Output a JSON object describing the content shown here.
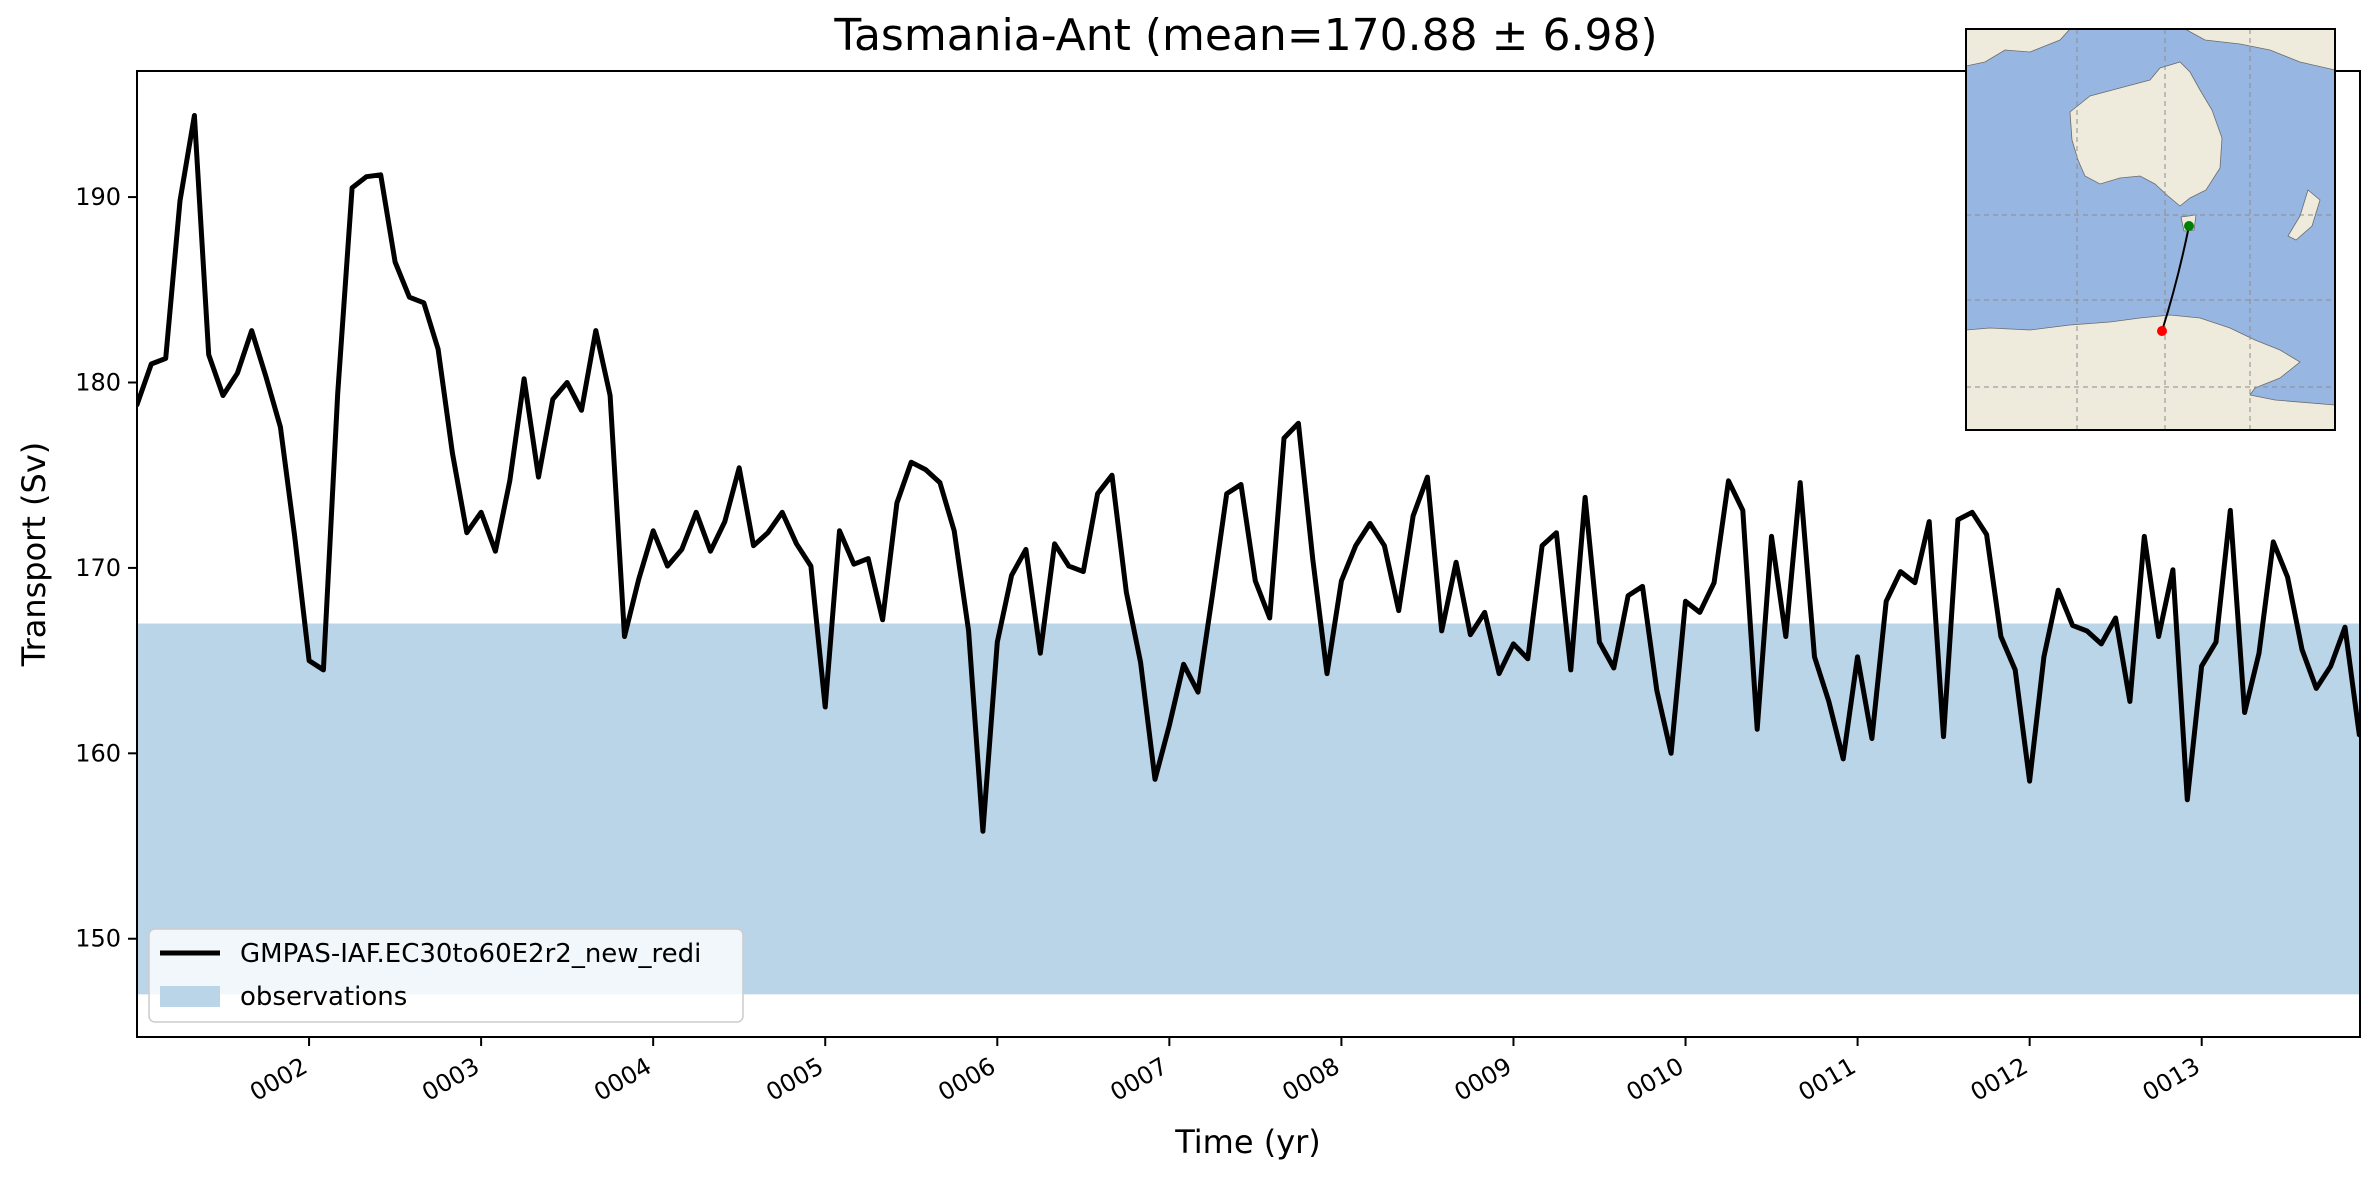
{
  "chart_data": {
    "type": "line",
    "title": "Tasmania-Ant (mean=170.88 ± 6.98)",
    "xlabel": "Time (yr)",
    "ylabel": "Transport (Sv)",
    "xlim": [
      1.0,
      13.92
    ],
    "ylim": [
      144.7,
      196.8
    ],
    "x_ticks": [
      {
        "value": 2,
        "label": "0002"
      },
      {
        "value": 3,
        "label": "0003"
      },
      {
        "value": 4,
        "label": "0004"
      },
      {
        "value": 5,
        "label": "0005"
      },
      {
        "value": 6,
        "label": "0006"
      },
      {
        "value": 7,
        "label": "0007"
      },
      {
        "value": 8,
        "label": "0008"
      },
      {
        "value": 9,
        "label": "0009"
      },
      {
        "value": 10,
        "label": "0010"
      },
      {
        "value": 11,
        "label": "0011"
      },
      {
        "value": 12,
        "label": "0012"
      },
      {
        "value": 13,
        "label": "0013"
      }
    ],
    "y_ticks": [
      150,
      160,
      170,
      180,
      190
    ],
    "x_tick_rotation": 30,
    "grid": false,
    "legend_position": "lower-left",
    "observations_band": {
      "name": "observations",
      "ymin": 147.0,
      "ymax": 167.0,
      "color": "#bad4e8"
    },
    "series": [
      {
        "name": "GMPAS-IAF.EC30to60E2r2_new_redi",
        "color": "#000000",
        "x_start": 1.0,
        "x_step": 0.08333,
        "values": [
          178.8,
          181.0,
          181.3,
          189.8,
          194.4,
          181.5,
          179.3,
          180.5,
          182.8,
          180.3,
          177.6,
          171.7,
          165.0,
          164.5,
          179.4,
          190.5,
          191.1,
          191.2,
          186.5,
          184.6,
          184.3,
          181.8,
          176.2,
          171.9,
          173.0,
          170.9,
          174.7,
          180.2,
          174.9,
          179.1,
          180.0,
          178.5,
          182.8,
          179.3,
          166.3,
          169.4,
          172.0,
          170.1,
          171.0,
          173.0,
          170.9,
          172.5,
          175.4,
          171.2,
          171.9,
          173.0,
          171.3,
          170.1,
          162.5,
          172.0,
          170.2,
          170.5,
          167.2,
          173.5,
          175.7,
          175.3,
          174.6,
          172.0,
          166.6,
          155.8,
          166.0,
          169.6,
          171.0,
          165.4,
          171.3,
          170.1,
          169.8,
          174.0,
          175.0,
          168.7,
          164.9,
          158.6,
          161.5,
          164.8,
          163.3,
          168.5,
          174.0,
          174.5,
          169.3,
          167.3,
          177.0,
          177.8,
          170.5,
          164.3,
          169.3,
          171.2,
          172.4,
          171.2,
          167.7,
          172.8,
          174.9,
          166.6,
          170.3,
          166.4,
          167.6,
          164.3,
          165.9,
          165.1,
          171.2,
          171.9,
          164.5,
          173.8,
          166.0,
          164.6,
          168.5,
          169.0,
          163.4,
          160.0,
          168.2,
          167.6,
          169.2,
          174.7,
          173.1,
          161.3,
          171.7,
          166.3,
          174.6,
          165.2,
          162.8,
          159.7,
          165.2,
          160.8,
          168.2,
          169.8,
          169.2,
          172.5,
          160.9,
          172.6,
          173.0,
          171.8,
          166.3,
          164.5,
          158.5,
          165.2,
          168.8,
          166.9,
          166.6,
          165.9,
          167.3,
          162.8,
          171.7,
          166.3,
          169.9,
          157.5,
          164.7,
          166.0,
          173.1,
          162.2,
          165.4,
          171.4,
          169.5,
          165.6,
          163.5,
          164.7,
          166.8,
          161.0
        ]
      }
    ],
    "inset_map": {
      "land_color": "#efebdc",
      "ocean_color": "#97b6e1",
      "section_start_color": "#008000",
      "section_end_color": "#ff0000"
    }
  }
}
